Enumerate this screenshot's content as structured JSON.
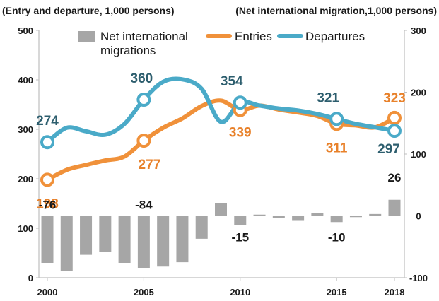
{
  "chart_data": {
    "type": "bar+line",
    "left_axis_title": "(Entry and departure, 1,000 persons)",
    "right_axis_title": "(Net international migration,1,000 persons)",
    "left_ylim": [
      0,
      500
    ],
    "left_ticks": [
      "0",
      "100",
      "200",
      "300",
      "400",
      "500"
    ],
    "right_ylim": [
      -100,
      300
    ],
    "right_ticks": [
      "-100",
      "0",
      "100",
      "200",
      "300"
    ],
    "x_ticks": [
      "2000",
      "2005",
      "2010",
      "2015",
      "2018"
    ],
    "x": [
      2000,
      2001,
      2002,
      2003,
      2004,
      2005,
      2006,
      2007,
      2008,
      2009,
      2010,
      2011,
      2012,
      2013,
      2014,
      2015,
      2016,
      2017,
      2018
    ],
    "legend_position": "top",
    "series": [
      {
        "name": "Net international migrations",
        "type": "bar",
        "axis": "right",
        "color": "#a6a6a6",
        "values": [
          -76,
          -89,
          -63,
          -58,
          -76,
          -84,
          -82,
          -75,
          -37,
          20,
          -15,
          2,
          -3,
          -8,
          4,
          -10,
          -2,
          3,
          26
        ]
      },
      {
        "name": "Entries",
        "type": "line",
        "axis": "left",
        "color": "#f0913a",
        "values": [
          198,
          218,
          228,
          237,
          245,
          277,
          303,
          322,
          347,
          358,
          339,
          348,
          340,
          334,
          327,
          311,
          308,
          304,
          323
        ]
      },
      {
        "name": "Departures",
        "type": "line",
        "axis": "left",
        "color": "#4aaac8",
        "values": [
          274,
          303,
          296,
          289,
          311,
          360,
          396,
          401,
          382,
          315,
          354,
          348,
          342,
          338,
          331,
          321,
          311,
          304,
          297
        ]
      }
    ],
    "data_labels": {
      "entries": [
        {
          "x": 2000,
          "text": "198"
        },
        {
          "x": 2005,
          "text": "277"
        },
        {
          "x": 2010,
          "text": "339"
        },
        {
          "x": 2015,
          "text": "311"
        },
        {
          "x": 2018,
          "text": "323"
        }
      ],
      "departures": [
        {
          "x": 2000,
          "text": "274"
        },
        {
          "x": 2005,
          "text": "360"
        },
        {
          "x": 2010,
          "text": "354"
        },
        {
          "x": 2015,
          "text": "321"
        },
        {
          "x": 2018,
          "text": "297"
        }
      ],
      "net": [
        {
          "x": 2000,
          "text": "-76"
        },
        {
          "x": 2005,
          "text": "-84"
        },
        {
          "x": 2010,
          "text": "-15"
        },
        {
          "x": 2015,
          "text": "-10"
        },
        {
          "x": 2018,
          "text": "26"
        }
      ]
    },
    "legend": {
      "net_line1": "Net international",
      "net_line2": "migrations",
      "entries": "Entries",
      "departures": "Departures"
    }
  }
}
